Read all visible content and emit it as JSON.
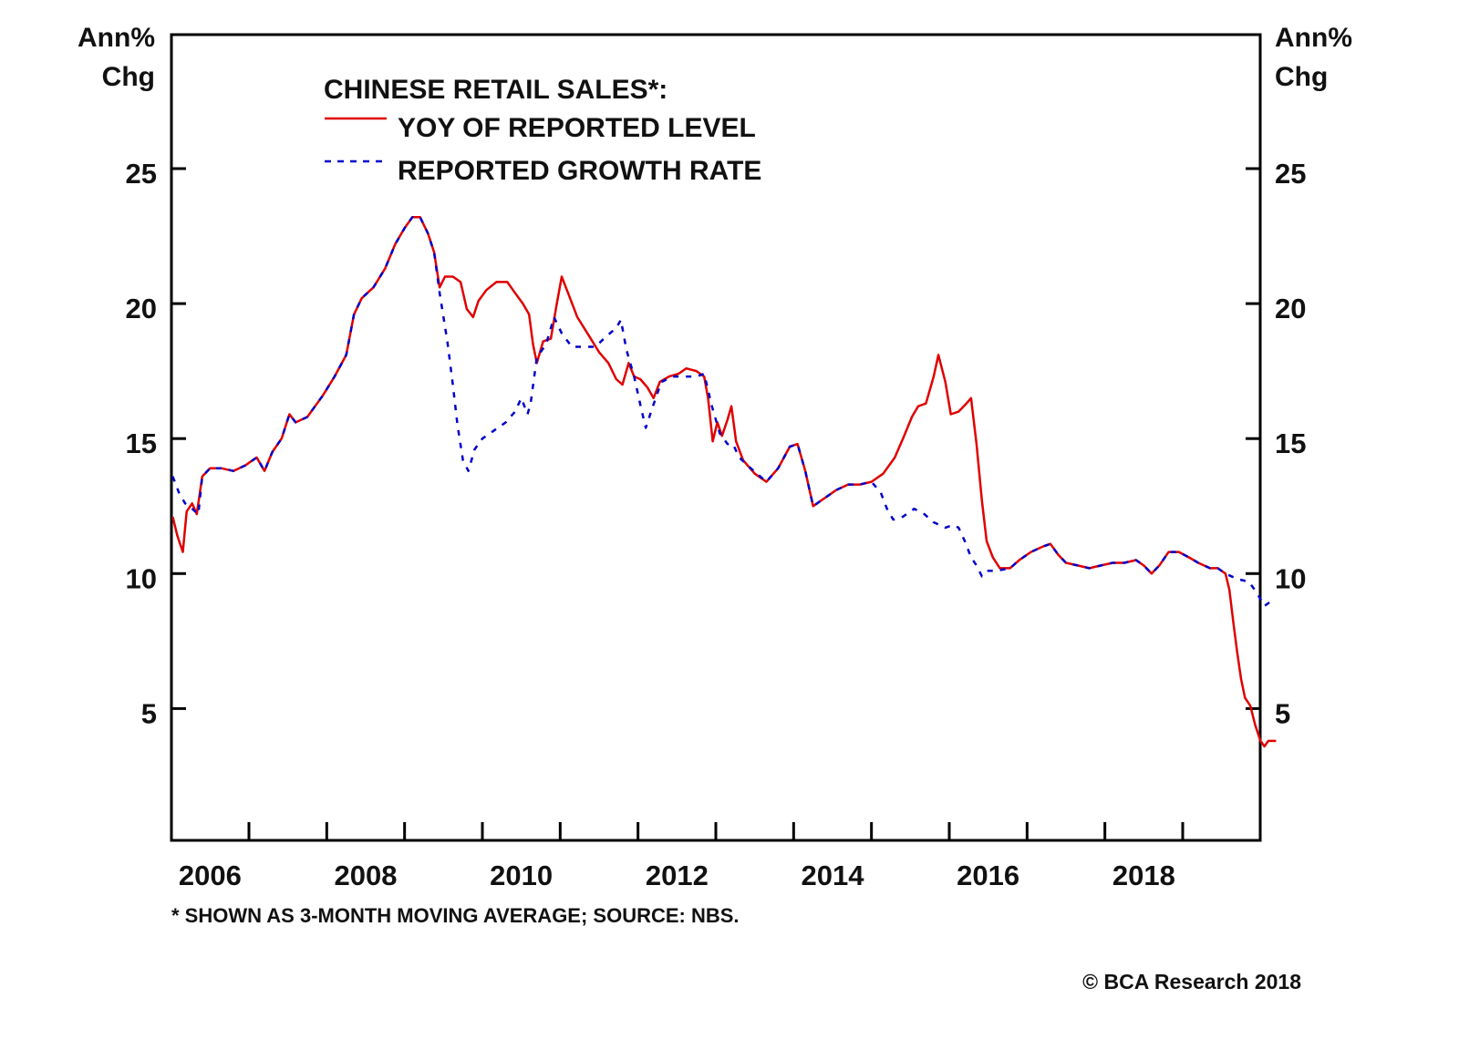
{
  "chart_data": {
    "type": "line",
    "title": "CHINESE RETAIL SALES*:",
    "ylabel_left": [
      "Ann%",
      "Chg"
    ],
    "ylabel_right": [
      "Ann%",
      "Chg"
    ],
    "xlabel": "",
    "ylim": [
      0,
      30
    ],
    "xlim": [
      2006.0,
      2020.0
    ],
    "yticks": [
      5,
      10,
      15,
      20,
      25
    ],
    "ytick_labels": [
      "5",
      "10",
      "15",
      "20",
      "25"
    ],
    "xticks": [
      2007,
      2008,
      2009,
      2010,
      2011,
      2012,
      2013,
      2014,
      2015,
      2016,
      2017,
      2018,
      2019
    ],
    "xtick_labels": [
      {
        "label": "2006",
        "x": 2006.5
      },
      {
        "label": "2008",
        "x": 2008.5
      },
      {
        "label": "2010",
        "x": 2010.5
      },
      {
        "label": "2012",
        "x": 2012.5
      },
      {
        "label": "2014",
        "x": 2014.5
      },
      {
        "label": "2016",
        "x": 2016.5
      },
      {
        "label": "2018",
        "x": 2018.5
      }
    ],
    "grid": false,
    "legend_position": "top-left",
    "series": [
      {
        "name": "YOY OF REPORTED LEVEL",
        "color": "#e00000",
        "style": "solid",
        "points": [
          [
            2006.02,
            12.1
          ],
          [
            2006.08,
            11.4
          ],
          [
            2006.15,
            10.8
          ],
          [
            2006.2,
            12.3
          ],
          [
            2006.27,
            12.6
          ],
          [
            2006.33,
            12.2
          ],
          [
            2006.4,
            13.6
          ],
          [
            2006.5,
            13.9
          ],
          [
            2006.65,
            13.9
          ],
          [
            2006.8,
            13.8
          ],
          [
            2006.95,
            14.0
          ],
          [
            2007.1,
            14.3
          ],
          [
            2007.2,
            13.8
          ],
          [
            2007.3,
            14.5
          ],
          [
            2007.42,
            15.0
          ],
          [
            2007.52,
            15.9
          ],
          [
            2007.6,
            15.6
          ],
          [
            2007.75,
            15.8
          ],
          [
            2007.95,
            16.6
          ],
          [
            2008.1,
            17.3
          ],
          [
            2008.25,
            18.1
          ],
          [
            2008.35,
            19.6
          ],
          [
            2008.45,
            20.2
          ],
          [
            2008.6,
            20.6
          ],
          [
            2008.75,
            21.3
          ],
          [
            2008.88,
            22.2
          ],
          [
            2009.0,
            22.8
          ],
          [
            2009.1,
            23.2
          ],
          [
            2009.2,
            23.2
          ],
          [
            2009.3,
            22.6
          ],
          [
            2009.38,
            21.9
          ],
          [
            2009.45,
            20.6
          ],
          [
            2009.52,
            21.0
          ],
          [
            2009.62,
            21.0
          ],
          [
            2009.72,
            20.8
          ],
          [
            2009.8,
            19.8
          ],
          [
            2009.88,
            19.5
          ],
          [
            2009.95,
            20.1
          ],
          [
            2010.05,
            20.5
          ],
          [
            2010.18,
            20.8
          ],
          [
            2010.32,
            20.8
          ],
          [
            2010.42,
            20.4
          ],
          [
            2010.52,
            20.0
          ],
          [
            2010.6,
            19.6
          ],
          [
            2010.65,
            18.5
          ],
          [
            2010.7,
            17.8
          ],
          [
            2010.78,
            18.6
          ],
          [
            2010.88,
            18.7
          ],
          [
            2010.95,
            19.9
          ],
          [
            2011.02,
            21.0
          ],
          [
            2011.1,
            20.4
          ],
          [
            2011.22,
            19.5
          ],
          [
            2011.35,
            18.9
          ],
          [
            2011.5,
            18.2
          ],
          [
            2011.62,
            17.8
          ],
          [
            2011.72,
            17.2
          ],
          [
            2011.8,
            17.0
          ],
          [
            2011.88,
            17.8
          ],
          [
            2011.95,
            17.3
          ],
          [
            2012.03,
            17.2
          ],
          [
            2012.12,
            16.9
          ],
          [
            2012.2,
            16.5
          ],
          [
            2012.28,
            17.1
          ],
          [
            2012.4,
            17.3
          ],
          [
            2012.52,
            17.4
          ],
          [
            2012.62,
            17.6
          ],
          [
            2012.75,
            17.5
          ],
          [
            2012.85,
            17.3
          ],
          [
            2012.9,
            16.5
          ],
          [
            2012.96,
            14.9
          ],
          [
            2013.02,
            15.6
          ],
          [
            2013.08,
            15.1
          ],
          [
            2013.15,
            15.7
          ],
          [
            2013.2,
            16.2
          ],
          [
            2013.26,
            14.9
          ],
          [
            2013.35,
            14.2
          ],
          [
            2013.5,
            13.7
          ],
          [
            2013.65,
            13.4
          ],
          [
            2013.8,
            13.9
          ],
          [
            2013.95,
            14.7
          ],
          [
            2014.05,
            14.8
          ],
          [
            2014.15,
            13.8
          ],
          [
            2014.25,
            12.5
          ],
          [
            2014.4,
            12.8
          ],
          [
            2014.55,
            13.1
          ],
          [
            2014.7,
            13.3
          ],
          [
            2014.85,
            13.3
          ],
          [
            2015.0,
            13.4
          ],
          [
            2015.15,
            13.7
          ],
          [
            2015.3,
            14.3
          ],
          [
            2015.42,
            15.1
          ],
          [
            2015.52,
            15.8
          ],
          [
            2015.6,
            16.2
          ],
          [
            2015.7,
            16.3
          ],
          [
            2015.8,
            17.3
          ],
          [
            2015.86,
            18.1
          ],
          [
            2015.95,
            17.1
          ],
          [
            2016.02,
            15.9
          ],
          [
            2016.12,
            16.0
          ],
          [
            2016.22,
            16.3
          ],
          [
            2016.28,
            16.5
          ],
          [
            2016.35,
            14.8
          ],
          [
            2016.42,
            12.7
          ],
          [
            2016.48,
            11.2
          ],
          [
            2016.56,
            10.6
          ],
          [
            2016.65,
            10.2
          ],
          [
            2016.78,
            10.2
          ],
          [
            2016.9,
            10.5
          ],
          [
            2017.05,
            10.8
          ],
          [
            2017.2,
            11.0
          ],
          [
            2017.3,
            11.1
          ],
          [
            2017.4,
            10.7
          ],
          [
            2017.5,
            10.4
          ],
          [
            2017.65,
            10.3
          ],
          [
            2017.8,
            10.2
          ],
          [
            2017.95,
            10.3
          ],
          [
            2018.1,
            10.4
          ],
          [
            2018.25,
            10.4
          ],
          [
            2018.4,
            10.5
          ],
          [
            2018.5,
            10.3
          ],
          [
            2018.6,
            10.0
          ],
          [
            2018.7,
            10.3
          ],
          [
            2018.82,
            10.8
          ],
          [
            2018.95,
            10.8
          ],
          [
            2019.08,
            10.6
          ],
          [
            2019.2,
            10.4
          ],
          [
            2019.35,
            10.2
          ],
          [
            2019.45,
            10.2
          ],
          [
            2019.55,
            10.0
          ],
          [
            2019.6,
            9.4
          ],
          [
            2019.65,
            8.2
          ],
          [
            2019.7,
            7.1
          ],
          [
            2019.75,
            6.1
          ],
          [
            2019.8,
            5.4
          ],
          [
            2019.87,
            5.1
          ],
          [
            2019.93,
            4.4
          ],
          [
            2020.0,
            3.8
          ],
          [
            2020.05,
            3.6
          ],
          [
            2020.1,
            3.8
          ],
          [
            2020.2,
            3.8
          ]
        ]
      },
      {
        "name": "REPORTED GROWTH RATE",
        "color": "#0000cc",
        "style": "dashed",
        "points": [
          [
            2006.02,
            13.6
          ],
          [
            2006.1,
            13.0
          ],
          [
            2006.18,
            12.6
          ],
          [
            2006.27,
            12.4
          ],
          [
            2006.35,
            12.2
          ],
          [
            2006.4,
            13.6
          ],
          [
            2006.5,
            13.9
          ],
          [
            2006.65,
            13.9
          ],
          [
            2006.8,
            13.8
          ],
          [
            2006.95,
            14.0
          ],
          [
            2007.1,
            14.3
          ],
          [
            2007.2,
            13.8
          ],
          [
            2007.3,
            14.5
          ],
          [
            2007.42,
            15.0
          ],
          [
            2007.52,
            15.9
          ],
          [
            2007.6,
            15.6
          ],
          [
            2007.75,
            15.8
          ],
          [
            2007.95,
            16.6
          ],
          [
            2008.1,
            17.3
          ],
          [
            2008.25,
            18.1
          ],
          [
            2008.35,
            19.6
          ],
          [
            2008.45,
            20.2
          ],
          [
            2008.6,
            20.6
          ],
          [
            2008.75,
            21.3
          ],
          [
            2008.88,
            22.2
          ],
          [
            2009.0,
            22.8
          ],
          [
            2009.1,
            23.2
          ],
          [
            2009.2,
            23.2
          ],
          [
            2009.3,
            22.6
          ],
          [
            2009.38,
            21.9
          ],
          [
            2009.45,
            20.4
          ],
          [
            2009.55,
            18.6
          ],
          [
            2009.62,
            17.0
          ],
          [
            2009.68,
            15.5
          ],
          [
            2009.75,
            14.2
          ],
          [
            2009.82,
            13.8
          ],
          [
            2009.9,
            14.6
          ],
          [
            2010.0,
            15.0
          ],
          [
            2010.15,
            15.3
          ],
          [
            2010.3,
            15.6
          ],
          [
            2010.42,
            16.0
          ],
          [
            2010.5,
            16.5
          ],
          [
            2010.58,
            15.9
          ],
          [
            2010.62,
            16.3
          ],
          [
            2010.7,
            18.0
          ],
          [
            2010.82,
            18.5
          ],
          [
            2010.92,
            19.5
          ],
          [
            2011.02,
            18.9
          ],
          [
            2011.15,
            18.4
          ],
          [
            2011.3,
            18.4
          ],
          [
            2011.45,
            18.4
          ],
          [
            2011.6,
            18.8
          ],
          [
            2011.72,
            19.1
          ],
          [
            2011.78,
            19.4
          ],
          [
            2011.85,
            18.3
          ],
          [
            2011.95,
            17.3
          ],
          [
            2012.05,
            16.0
          ],
          [
            2012.1,
            15.4
          ],
          [
            2012.18,
            16.1
          ],
          [
            2012.3,
            17.1
          ],
          [
            2012.45,
            17.3
          ],
          [
            2012.6,
            17.3
          ],
          [
            2012.75,
            17.3
          ],
          [
            2012.85,
            17.4
          ],
          [
            2012.95,
            16.2
          ],
          [
            2013.05,
            15.2
          ],
          [
            2013.15,
            14.8
          ],
          [
            2013.22,
            14.8
          ],
          [
            2013.3,
            14.3
          ],
          [
            2013.45,
            13.9
          ],
          [
            2013.65,
            13.4
          ],
          [
            2013.8,
            13.9
          ],
          [
            2013.95,
            14.7
          ],
          [
            2014.05,
            14.8
          ],
          [
            2014.15,
            13.8
          ],
          [
            2014.25,
            12.5
          ],
          [
            2014.4,
            12.8
          ],
          [
            2014.55,
            13.1
          ],
          [
            2014.7,
            13.3
          ],
          [
            2014.85,
            13.3
          ],
          [
            2015.0,
            13.4
          ],
          [
            2015.12,
            13.0
          ],
          [
            2015.2,
            12.4
          ],
          [
            2015.28,
            12.0
          ],
          [
            2015.4,
            12.1
          ],
          [
            2015.55,
            12.4
          ],
          [
            2015.68,
            12.2
          ],
          [
            2015.8,
            11.9
          ],
          [
            2015.95,
            11.7
          ],
          [
            2016.05,
            11.8
          ],
          [
            2016.12,
            11.7
          ],
          [
            2016.2,
            11.2
          ],
          [
            2016.28,
            10.6
          ],
          [
            2016.35,
            10.3
          ],
          [
            2016.42,
            9.9
          ],
          [
            2016.5,
            10.1
          ],
          [
            2016.6,
            10.1
          ],
          [
            2016.78,
            10.2
          ],
          [
            2016.9,
            10.5
          ],
          [
            2017.05,
            10.8
          ],
          [
            2017.2,
            11.0
          ],
          [
            2017.3,
            11.1
          ],
          [
            2017.4,
            10.7
          ],
          [
            2017.5,
            10.4
          ],
          [
            2017.65,
            10.3
          ],
          [
            2017.8,
            10.2
          ],
          [
            2017.95,
            10.3
          ],
          [
            2018.1,
            10.4
          ],
          [
            2018.25,
            10.4
          ],
          [
            2018.4,
            10.5
          ],
          [
            2018.5,
            10.3
          ],
          [
            2018.6,
            10.0
          ],
          [
            2018.7,
            10.3
          ],
          [
            2018.82,
            10.8
          ],
          [
            2018.95,
            10.8
          ],
          [
            2019.08,
            10.6
          ],
          [
            2019.2,
            10.4
          ],
          [
            2019.35,
            10.2
          ],
          [
            2019.45,
            10.2
          ],
          [
            2019.55,
            10.0
          ],
          [
            2019.7,
            9.8
          ],
          [
            2019.85,
            9.7
          ],
          [
            2019.95,
            9.3
          ],
          [
            2020.05,
            8.8
          ],
          [
            2020.15,
            9.0
          ],
          [
            2020.2,
            9.0
          ]
        ]
      }
    ],
    "legend": {
      "title": "CHINESE RETAIL SALES*:",
      "entries": [
        {
          "label": "YOY OF REPORTED LEVEL",
          "color": "#e00000",
          "style": "solid"
        },
        {
          "label": "REPORTED GROWTH RATE",
          "color": "#0000cc",
          "style": "dashed"
        }
      ]
    },
    "footnote": "* SHOWN AS 3-MONTH MOVING AVERAGE; SOURCE: NBS.",
    "copyright": "© BCA Research 2018"
  }
}
